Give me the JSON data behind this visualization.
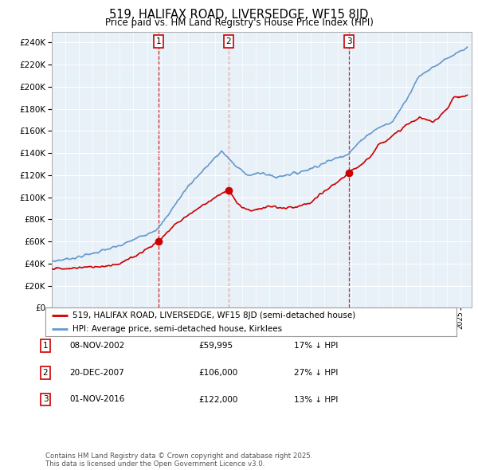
{
  "title": "519, HALIFAX ROAD, LIVERSEDGE, WF15 8JD",
  "subtitle": "Price paid vs. HM Land Registry's House Price Index (HPI)",
  "legend_entry1": "519, HALIFAX ROAD, LIVERSEDGE, WF15 8JD (semi-detached house)",
  "legend_entry2": "HPI: Average price, semi-detached house, Kirklees",
  "footnote": "Contains HM Land Registry data © Crown copyright and database right 2025.\nThis data is licensed under the Open Government Licence v3.0.",
  "transactions": [
    {
      "num": 1,
      "date": "08-NOV-2002",
      "price": 59995,
      "hpi_diff": "17% ↓ HPI"
    },
    {
      "num": 2,
      "date": "20-DEC-2007",
      "price": 106000,
      "hpi_diff": "27% ↓ HPI"
    },
    {
      "num": 3,
      "date": "01-NOV-2016",
      "price": 122000,
      "hpi_diff": "13% ↓ HPI"
    }
  ],
  "sale_dates_decimal": [
    2002.86,
    2007.97,
    2016.84
  ],
  "sale_prices": [
    59995,
    106000,
    122000
  ],
  "hpi_color": "#6699cc",
  "price_color": "#cc0000",
  "background_color": "#ffffff",
  "chart_bg_color": "#e8f0f8",
  "grid_color": "#ffffff"
}
